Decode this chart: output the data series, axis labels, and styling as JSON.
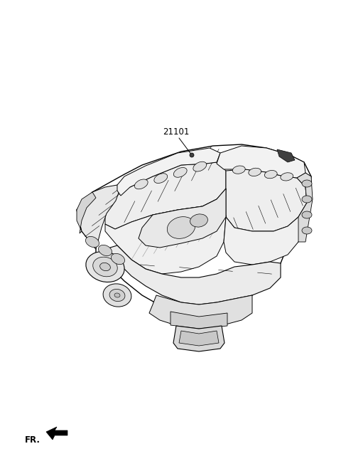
{
  "background_color": "#ffffff",
  "fig_width": 4.8,
  "fig_height": 6.55,
  "dpi": 100,
  "label_part_number": "21101",
  "label_fr": "FR.",
  "line_color": "#000000"
}
